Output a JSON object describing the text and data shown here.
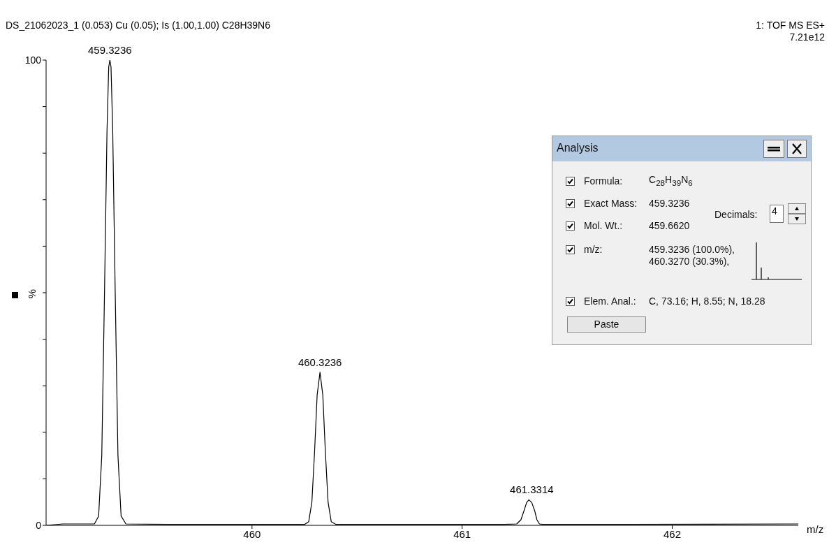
{
  "chart_data": {
    "type": "line",
    "subtitle": "DS_21062023_1  (0.053) Cu (0.05); Is (1.00,1.00) C28H39N6",
    "xlabel": "m/z",
    "ylabel": "%",
    "series": [
      {
        "color": "#000000",
        "x": [
          459.02,
          459.1,
          459.25,
          459.27,
          459.285,
          459.298,
          459.31,
          459.318,
          459.3236,
          459.329,
          459.337,
          459.349,
          459.362,
          459.377,
          459.4,
          459.6,
          460.0,
          460.25,
          460.27,
          460.285,
          460.298,
          460.31,
          460.3236,
          460.337,
          460.349,
          460.362,
          460.377,
          460.4,
          460.8,
          461.2,
          461.26,
          461.28,
          461.295,
          461.307,
          461.318,
          461.3314,
          461.345,
          461.356,
          461.368,
          461.383,
          461.41,
          461.8,
          462.6
        ],
        "values": [
          0,
          0.3,
          0.3,
          2,
          15,
          50,
          85,
          98.5,
          100,
          98.5,
          85,
          50,
          15,
          2,
          0.3,
          0.2,
          0.2,
          0.2,
          0.8,
          5,
          16,
          28,
          32.9,
          28,
          16,
          5,
          0.8,
          0.2,
          0.2,
          0.2,
          0.3,
          1.2,
          3.2,
          4.9,
          5.5,
          4.9,
          3.2,
          1.2,
          0.3,
          0.2,
          0.2,
          0.2,
          0.3
        ]
      }
    ],
    "xlim": [
      459.02,
      462.6
    ],
    "xticks": [
      460,
      461,
      462
    ],
    "ylim": [
      0,
      100
    ],
    "yticks": [
      0,
      {
        "value": 10,
        "label": null
      },
      {
        "value": 20,
        "label": null
      },
      {
        "value": 30,
        "label": null
      },
      {
        "value": 40,
        "label": null
      },
      {
        "value": 50,
        "label": null
      },
      {
        "value": 60,
        "label": null
      },
      {
        "value": 70,
        "label": null
      },
      {
        "value": 80,
        "label": null
      },
      {
        "value": 90,
        "label": null
      },
      100
    ],
    "annotations": [
      {
        "text": "459.3236",
        "x": 459.3236,
        "y": 100
      },
      {
        "text": "460.3236",
        "x": 460.3236,
        "y": 32.9
      },
      {
        "text": "461.3314",
        "x": 461.3314,
        "y": 5.5
      },
      "1: TOF MS ES+",
      "7.21e12",
      "Analysis",
      "Formula:",
      "C$_{28}$H$_{39}$N$_{6}$",
      "Exact Mass:",
      "459.3236",
      "Decimals:",
      "4",
      "Mol. Wt.:",
      "459.6620",
      "m/z:",
      "459.3236 (100.0%), 460.3270 (30.3%),",
      "Elem. Anal.:",
      "C, 73.16; H, 8.55; N, 18.28",
      "Paste"
    ]
  }
}
